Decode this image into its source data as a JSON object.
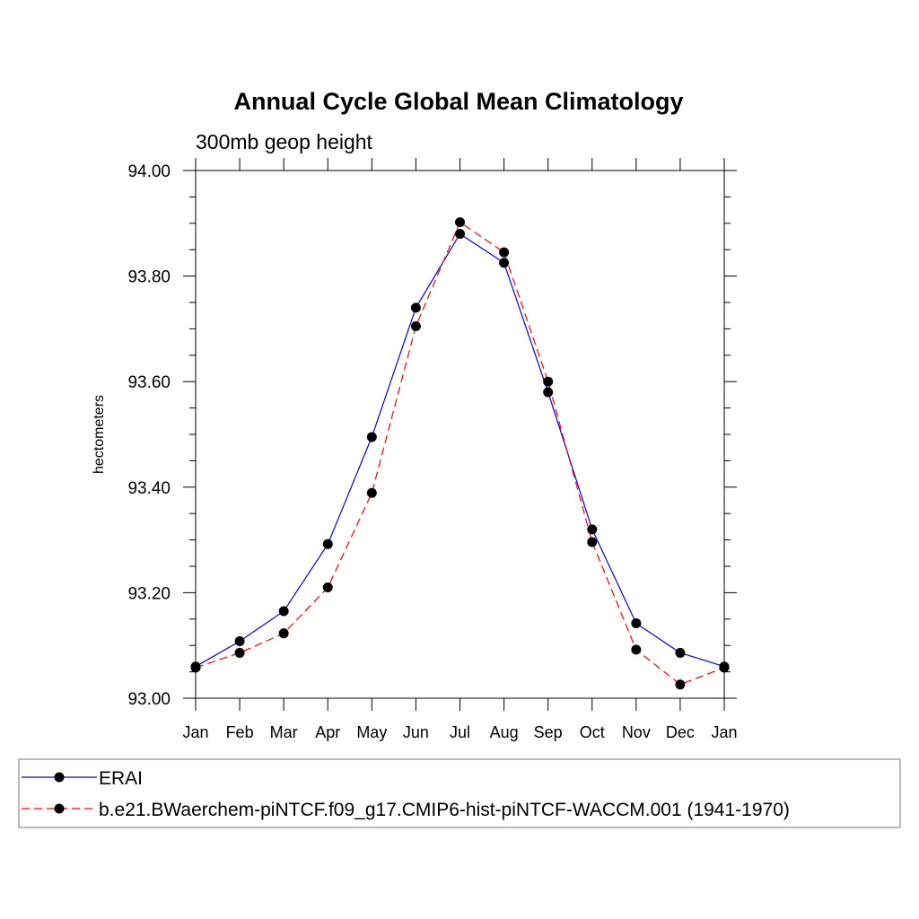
{
  "chart_data": {
    "type": "line",
    "title": "Annual Cycle Global Mean Climatology",
    "subtitle": "300mb geop height",
    "xlabel": "",
    "ylabel": "hectometers",
    "categories": [
      "Jan",
      "Feb",
      "Mar",
      "Apr",
      "May",
      "Jun",
      "Jul",
      "Aug",
      "Sep",
      "Oct",
      "Nov",
      "Dec",
      "Jan"
    ],
    "ylim": [
      93.0,
      94.0
    ],
    "yticks": [
      "93.00",
      "93.20",
      "93.40",
      "93.60",
      "93.80",
      "94.00"
    ],
    "grid": false,
    "legend_placement": "bottom",
    "series": [
      {
        "name": "ERAI",
        "color": "#0000ff",
        "style": "solid",
        "marker": "filled-circle",
        "values": [
          93.06,
          93.108,
          93.165,
          93.292,
          93.495,
          93.74,
          93.88,
          93.825,
          93.58,
          93.32,
          93.142,
          93.086,
          93.06
        ]
      },
      {
        "name": "b.e21.BWaerchem-piNTCF.f09_g17.CMIP6-hist-piNTCF-WACCM.001 (1941-1970)",
        "color": "#ff0000",
        "style": "dashed",
        "marker": "filled-circle",
        "values": [
          93.058,
          93.086,
          93.123,
          93.21,
          93.389,
          93.705,
          93.902,
          93.845,
          93.6,
          93.296,
          93.092,
          93.026,
          93.058
        ]
      }
    ]
  }
}
